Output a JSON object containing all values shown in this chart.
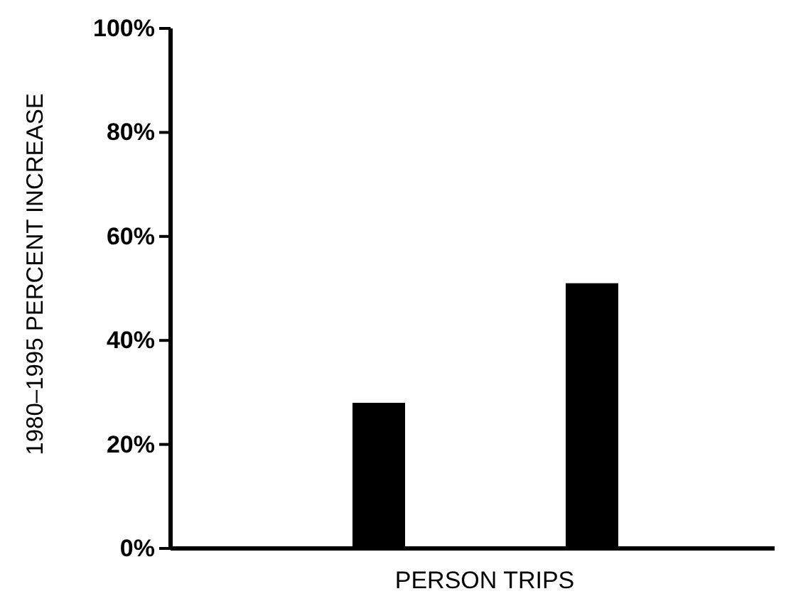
{
  "chart_data": {
    "type": "bar",
    "xlabel": "PERSON TRIPS",
    "ylabel": "1980–1995 PERCENT INCREASE",
    "categories": [
      null,
      null
    ],
    "values": [
      28,
      51
    ],
    "colors": [
      "#000000",
      "#000000"
    ],
    "ylim": [
      0,
      100
    ],
    "yticks": [
      {
        "value": 0,
        "label": "0%"
      },
      {
        "value": 20,
        "label": "20%"
      },
      {
        "value": 40,
        "label": "40%"
      },
      {
        "value": 60,
        "label": "60%"
      },
      {
        "value": 80,
        "label": "80%"
      },
      {
        "value": 100,
        "label": "100%"
      }
    ],
    "grid": false
  }
}
